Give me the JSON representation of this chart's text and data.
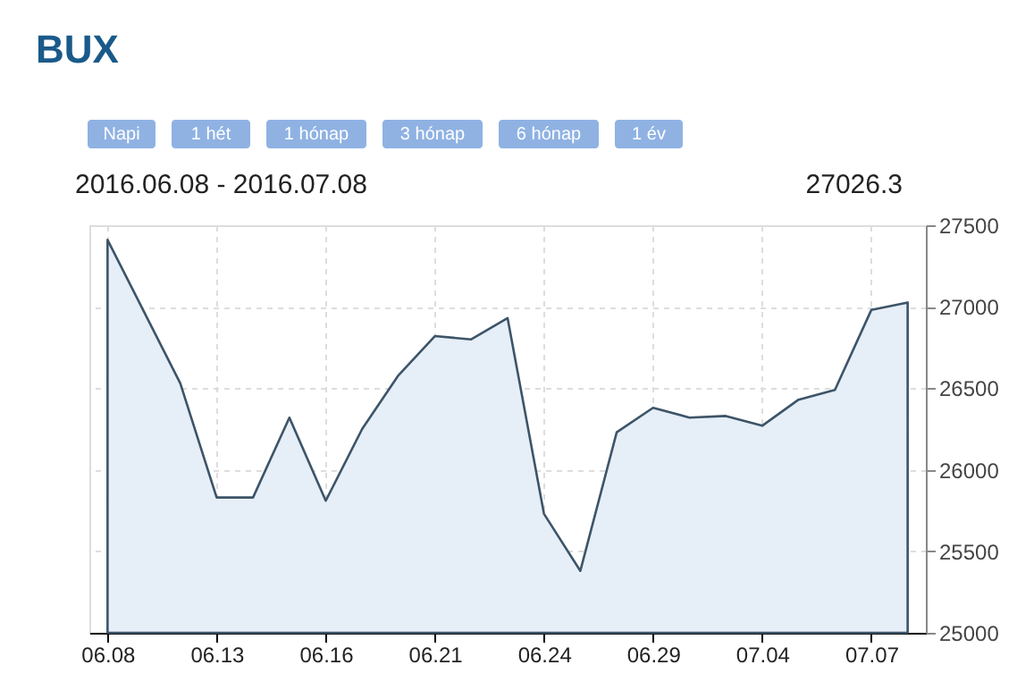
{
  "chart_data": {
    "type": "area",
    "title": "BUX",
    "subtitle": "2016.06.08 - 2016.07.08",
    "annotations": [
      "Napi",
      "1 hét",
      "1 hónap",
      "3 hónap",
      "6 hónap",
      "1 év",
      "27026.3"
    ],
    "categories": [
      "06.08",
      null,
      null,
      "06.13",
      null,
      null,
      "06.16",
      null,
      null,
      "06.21",
      null,
      null,
      "06.24",
      null,
      null,
      "06.29",
      null,
      null,
      "07.04",
      null,
      null,
      "07.07",
      null
    ],
    "series": [
      {
        "color": "#3d5468",
        "values": [
          27410,
          26970,
          26530,
          25830,
          25830,
          26320,
          25810,
          26250,
          26580,
          26820,
          26800,
          26930,
          25730,
          25380,
          26230,
          26380,
          26320,
          26330,
          26270,
          26430,
          26490,
          26980,
          27026.3
        ]
      }
    ],
    "ylim": [
      25000,
      27500
    ],
    "yticks": [
      25000,
      25500,
      26000,
      26500,
      27000,
      27500
    ],
    "grid": true
  }
}
